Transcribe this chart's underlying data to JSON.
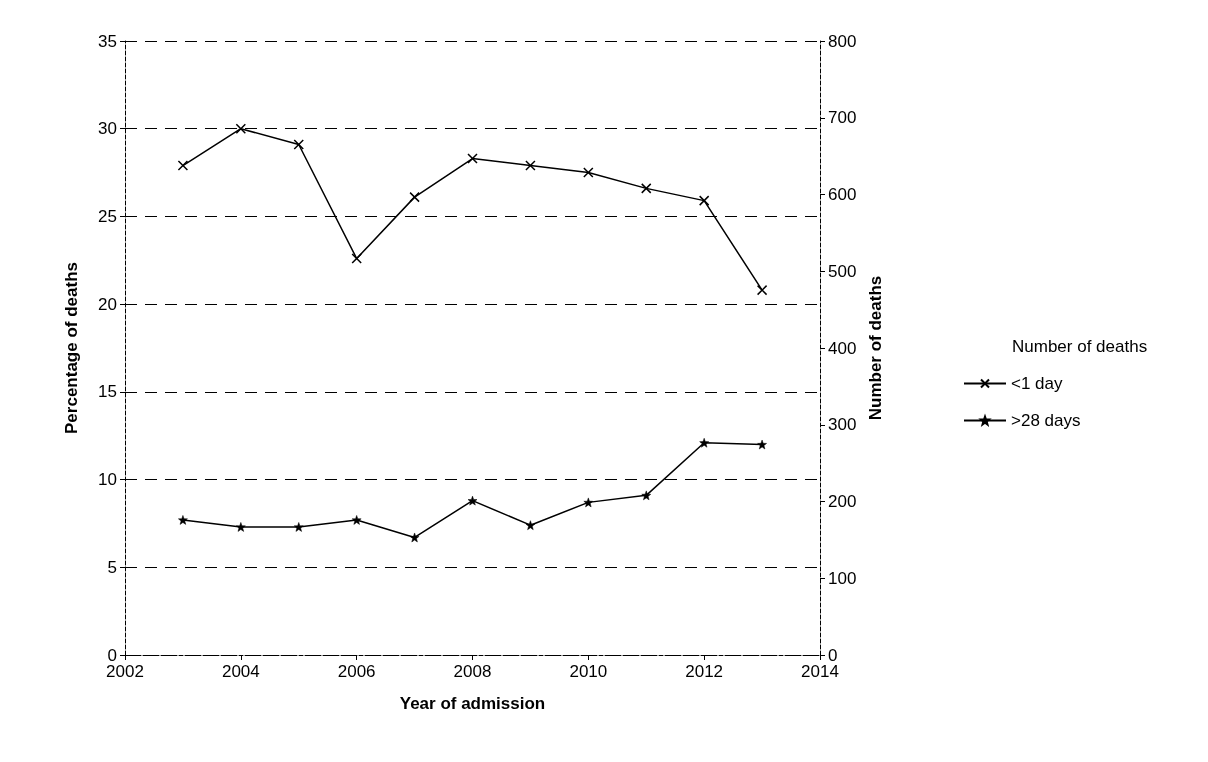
{
  "chart_data": {
    "type": "line",
    "xlabel": "Year of admission",
    "ylabel": "Percentage of deaths",
    "y2label": "Number of deaths",
    "legend_title": "Number of deaths",
    "x": [
      2003,
      2004,
      2005,
      2006,
      2007,
      2008,
      2009,
      2010,
      2011,
      2012,
      2013
    ],
    "series": [
      {
        "name": "<1 day",
        "color": "#000000",
        "marker": "cross",
        "values": [
          27.9,
          30.0,
          29.1,
          22.6,
          26.1,
          28.3,
          27.9,
          27.5,
          26.6,
          25.9,
          20.8
        ]
      },
      {
        "name": ">28 days",
        "color": "#000000",
        "marker": "star",
        "values": [
          7.7,
          7.3,
          7.3,
          7.7,
          6.7,
          8.8,
          7.4,
          8.7,
          9.1,
          12.1,
          12.0
        ]
      }
    ],
    "xlim": [
      2002,
      2014
    ],
    "xticks": [
      2002,
      2004,
      2006,
      2008,
      2010,
      2012,
      2014
    ],
    "ylim": [
      0,
      35
    ],
    "yticks": [
      0,
      5,
      10,
      15,
      20,
      25,
      30,
      35
    ],
    "y2lim": [
      0,
      800
    ],
    "y2ticks": [
      0,
      100,
      200,
      300,
      400,
      500,
      600,
      700,
      800
    ],
    "grid": "y",
    "legend": "right",
    "line_style": "solid"
  }
}
